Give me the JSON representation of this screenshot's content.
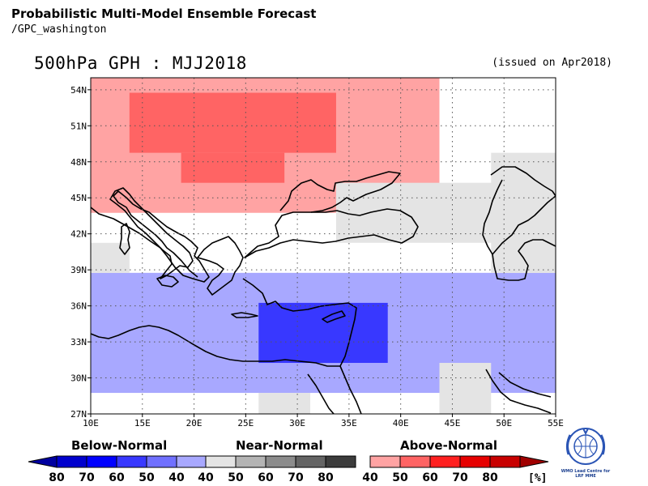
{
  "header": {
    "title": "Probabilistic Multi-Model Ensemble Forecast",
    "subtitle": "/GPC_washington",
    "variable_title": "500hPa GPH : MJJ2018",
    "issued": "(issued on Apr2018)"
  },
  "map": {
    "lon_range": [
      10,
      55
    ],
    "lat_range": [
      27,
      55
    ],
    "x_ticks": [
      "10E",
      "15E",
      "20E",
      "25E",
      "30E",
      "35E",
      "40E",
      "45E",
      "50E",
      "55E"
    ],
    "y_ticks": [
      {
        "lat": 54,
        "label": "54N"
      },
      {
        "lat": 51,
        "label": "51N"
      },
      {
        "lat": 48,
        "label": "48N"
      },
      {
        "lat": 45,
        "label": "45N"
      },
      {
        "lat": 42,
        "label": "42N"
      },
      {
        "lat": 39,
        "label": "39N"
      },
      {
        "lat": 36,
        "label": "36N"
      },
      {
        "lat": 33,
        "label": "33N"
      },
      {
        "lat": 30,
        "label": "30N"
      },
      {
        "lat": 27,
        "label": "27N"
      }
    ],
    "gridlines": "dotted",
    "shaded_regions": [
      {
        "category": "above-normal",
        "level": "40-50",
        "lon": [
          10,
          43.75
        ],
        "lat": [
          43.75,
          55
        ]
      },
      {
        "category": "above-normal",
        "level": "50-60",
        "lon": [
          13.75,
          33.75
        ],
        "lat": [
          48.75,
          53.75
        ]
      },
      {
        "category": "above-normal",
        "level": "50-60",
        "lon": [
          18.75,
          28.75
        ],
        "lat": [
          46.25,
          48.75
        ]
      },
      {
        "category": "below-normal",
        "level": "40-50",
        "lon": [
          10,
          55
        ],
        "lat": [
          28.75,
          38.75
        ]
      },
      {
        "category": "below-normal",
        "level": "60-70",
        "lon": [
          26.25,
          38.75
        ],
        "lat": [
          31.25,
          36.25
        ]
      },
      {
        "category": "near-normal",
        "level": "40-50",
        "lon": [
          33.75,
          55
        ],
        "lat": [
          41.25,
          46.25
        ]
      },
      {
        "category": "near-normal",
        "level": "40-50",
        "lon": [
          48.75,
          55
        ],
        "lat": [
          38.75,
          48.75
        ]
      },
      {
        "category": "near-normal",
        "level": "40-50",
        "lon": [
          10,
          13.75
        ],
        "lat": [
          38.75,
          41.25
        ]
      },
      {
        "category": "near-normal",
        "level": "40-50",
        "lon": [
          43.75,
          48.75
        ],
        "lat": [
          27,
          31.25
        ]
      },
      {
        "category": "near-normal",
        "level": "40-50",
        "lon": [
          26.25,
          31.25
        ],
        "lat": [
          27,
          28.75
        ]
      }
    ]
  },
  "legend": {
    "categories": [
      {
        "name": "Below-Normal",
        "ticks": [
          "80",
          "70",
          "60",
          "50",
          "40"
        ],
        "colors": [
          "#0000cd",
          "#0000ff",
          "#3838ff",
          "#7070ff",
          "#a8a8ff"
        ]
      },
      {
        "name": "Near-Normal",
        "ticks": [
          "40",
          "50",
          "60",
          "70",
          "80"
        ],
        "colors": [
          "#e4e4e4",
          "#b4b4b4",
          "#8c8c8c",
          "#646464",
          "#3c3c3c"
        ]
      },
      {
        "name": "Above-Normal",
        "ticks": [
          "40",
          "50",
          "60",
          "70",
          "80"
        ],
        "colors": [
          "#ffa3a3",
          "#ff6464",
          "#ff2020",
          "#e60000",
          "#c80000"
        ]
      }
    ],
    "unit": "[%]"
  },
  "logo": {
    "text": "WMO Lead Centre for LRF MME"
  }
}
